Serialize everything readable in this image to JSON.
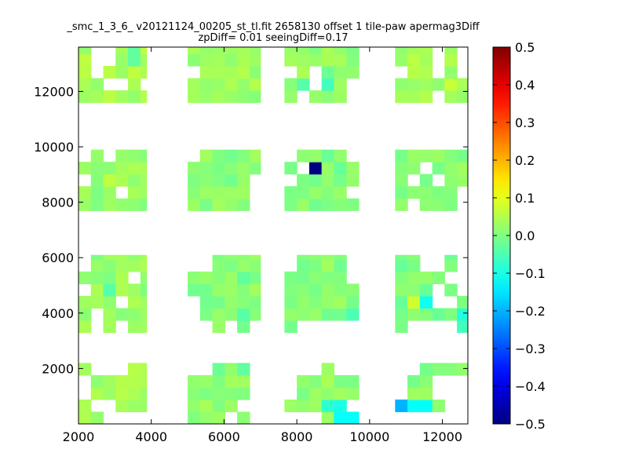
{
  "chart_data": {
    "type": "heatmap",
    "title": "_smc_1_3_6_ v20121124_00205_st_tl.fit 2658130 offset 1 tile-paw apermag3Diff",
    "subtitle": "zpDiff= 0.01 seeingDiff=0.17",
    "xlabel": "",
    "ylabel": "",
    "xlim": [
      2000,
      12700
    ],
    "ylim": [
      0,
      13600
    ],
    "xticks": [
      2000,
      4000,
      6000,
      8000,
      10000,
      12000
    ],
    "yticks": [
      2000,
      4000,
      6000,
      8000,
      10000,
      12000
    ],
    "cell_size": [
      340,
      440
    ],
    "colorbar": {
      "colormap": "jet",
      "vmin": -0.5,
      "vmax": 0.5,
      "ticks": [
        -0.5,
        -0.4,
        -0.3,
        -0.2,
        -0.1,
        0.0,
        0.1,
        0.2,
        0.3,
        0.4,
        0.5
      ],
      "tick_labels": [
        "−0.5",
        "−0.4",
        "−0.3",
        "−0.2",
        "−0.1",
        "0.0",
        "0.1",
        "0.2",
        "0.3",
        "0.4",
        "0.5"
      ]
    },
    "bands": [
      {
        "x0": 2000,
        "x1": 3870,
        "y0": 0,
        "y1": 2200,
        "v": 0.03
      },
      {
        "x0": 5000,
        "x1": 7000,
        "y0": 0,
        "y1": 2200,
        "v": 0.02
      },
      {
        "x0": 7660,
        "x1": 9700,
        "y0": 0,
        "y1": 2200,
        "v": 0.02
      },
      {
        "x0": 10700,
        "x1": 12700,
        "y0": 0,
        "y1": 2200,
        "v": 0.01
      },
      {
        "x0": 2000,
        "x1": 3870,
        "y0": 3300,
        "y1": 6100,
        "v": 0.02
      },
      {
        "x0": 5000,
        "x1": 7000,
        "y0": 3300,
        "y1": 6100,
        "v": 0.01
      },
      {
        "x0": 7660,
        "x1": 9700,
        "y0": 3300,
        "y1": 6100,
        "v": 0.01
      },
      {
        "x0": 10700,
        "x1": 12700,
        "y0": 3300,
        "y1": 6100,
        "v": 0.0
      },
      {
        "x0": 2000,
        "x1": 3870,
        "y0": 7700,
        "y1": 9900,
        "v": 0.02
      },
      {
        "x0": 5000,
        "x1": 7000,
        "y0": 7700,
        "y1": 9900,
        "v": 0.01
      },
      {
        "x0": 7660,
        "x1": 9700,
        "y0": 7700,
        "y1": 9900,
        "v": 0.0
      },
      {
        "x0": 10700,
        "x1": 12700,
        "y0": 7700,
        "y1": 9900,
        "v": 0.01
      },
      {
        "x0": 2000,
        "x1": 3870,
        "y0": 11600,
        "y1": 13600,
        "v": 0.04
      },
      {
        "x0": 5000,
        "x1": 7000,
        "y0": 11600,
        "y1": 13600,
        "v": 0.03
      },
      {
        "x0": 7660,
        "x1": 9700,
        "y0": 11600,
        "y1": 13600,
        "v": 0.02
      },
      {
        "x0": 10700,
        "x1": 12700,
        "y0": 11600,
        "y1": 13600,
        "v": 0.04
      }
    ],
    "outliers": [
      {
        "x": 8510,
        "y": 9230,
        "v": -0.5
      },
      {
        "x": 10940,
        "y": 530,
        "v": -0.2
      },
      {
        "x": 11280,
        "y": 530,
        "v": -0.12
      },
      {
        "x": 11620,
        "y": 530,
        "v": -0.12
      },
      {
        "x": 9150,
        "y": 530,
        "v": -0.1
      },
      {
        "x": 9150,
        "y": 150,
        "v": -0.12
      },
      {
        "x": 9490,
        "y": 150,
        "v": -0.12
      },
      {
        "x": 8830,
        "y": 530,
        "v": -0.08
      },
      {
        "x": 11620,
        "y": 4500,
        "v": -0.11
      },
      {
        "x": 12600,
        "y": 4020,
        "v": -0.09
      },
      {
        "x": 12600,
        "y": 3600,
        "v": -0.06
      },
      {
        "x": 11280,
        "y": 4500,
        "v": 0.08
      },
      {
        "x": 6430,
        "y": 4020,
        "v": -0.04
      },
      {
        "x": 9490,
        "y": 4020,
        "v": -0.05
      },
      {
        "x": 2680,
        "y": 4930,
        "v": -0.04
      },
      {
        "x": 6430,
        "y": 5370,
        "v": -0.03
      },
      {
        "x": 6430,
        "y": 1810,
        "v": -0.03
      },
      {
        "x": 5760,
        "y": 1810,
        "v": -0.02
      },
      {
        "x": 3360,
        "y": 13160,
        "v": -0.03
      },
      {
        "x": 8170,
        "y": 12280,
        "v": -0.04
      },
      {
        "x": 8830,
        "y": 12280,
        "v": -0.06
      },
      {
        "x": 8830,
        "y": 12720,
        "v": -0.02
      },
      {
        "x": 2680,
        "y": 8770,
        "v": 0.06
      },
      {
        "x": 12260,
        "y": 12280,
        "v": 0.07
      }
    ],
    "holes": [
      {
        "x": 2340,
        "y": 13160
      },
      {
        "x": 2680,
        "y": 13160
      },
      {
        "x": 2340,
        "y": 12720
      },
      {
        "x": 2680,
        "y": 12280
      },
      {
        "x": 3020,
        "y": 12280
      },
      {
        "x": 3700,
        "y": 12280
      },
      {
        "x": 5100,
        "y": 12720
      },
      {
        "x": 8510,
        "y": 12720
      },
      {
        "x": 8510,
        "y": 12280
      },
      {
        "x": 9490,
        "y": 12280
      },
      {
        "x": 9490,
        "y": 11840
      },
      {
        "x": 8170,
        "y": 11840
      },
      {
        "x": 7830,
        "y": 12720
      },
      {
        "x": 10940,
        "y": 12720
      },
      {
        "x": 11960,
        "y": 12720
      },
      {
        "x": 11960,
        "y": 13160
      },
      {
        "x": 11960,
        "y": 11840
      },
      {
        "x": 12600,
        "y": 12720
      },
      {
        "x": 12600,
        "y": 13160
      },
      {
        "x": 2000,
        "y": 9670
      },
      {
        "x": 2680,
        "y": 9670
      },
      {
        "x": 2000,
        "y": 8770
      },
      {
        "x": 3020,
        "y": 8330
      },
      {
        "x": 5100,
        "y": 9670
      },
      {
        "x": 6800,
        "y": 8770
      },
      {
        "x": 6800,
        "y": 8330
      },
      {
        "x": 6800,
        "y": 7890
      },
      {
        "x": 7830,
        "y": 8770
      },
      {
        "x": 8170,
        "y": 9230
      },
      {
        "x": 7830,
        "y": 9670
      },
      {
        "x": 9490,
        "y": 9670
      },
      {
        "x": 9490,
        "y": 8330
      },
      {
        "x": 11280,
        "y": 7890
      },
      {
        "x": 11620,
        "y": 9230
      },
      {
        "x": 11960,
        "y": 8770
      },
      {
        "x": 11280,
        "y": 8770
      },
      {
        "x": 12600,
        "y": 7890
      },
      {
        "x": 12600,
        "y": 8330
      },
      {
        "x": 2000,
        "y": 5810
      },
      {
        "x": 2000,
        "y": 4930
      },
      {
        "x": 2340,
        "y": 3600
      },
      {
        "x": 2340,
        "y": 4020
      },
      {
        "x": 3020,
        "y": 3600
      },
      {
        "x": 3020,
        "y": 4500
      },
      {
        "x": 3360,
        "y": 5370
      },
      {
        "x": 5100,
        "y": 4500
      },
      {
        "x": 5100,
        "y": 4020
      },
      {
        "x": 5100,
        "y": 3600
      },
      {
        "x": 5440,
        "y": 3600
      },
      {
        "x": 6100,
        "y": 3600
      },
      {
        "x": 6800,
        "y": 3600
      },
      {
        "x": 5100,
        "y": 5810
      },
      {
        "x": 5440,
        "y": 5810
      },
      {
        "x": 7830,
        "y": 5810
      },
      {
        "x": 8170,
        "y": 3600
      },
      {
        "x": 8510,
        "y": 3600
      },
      {
        "x": 8830,
        "y": 3600
      },
      {
        "x": 9150,
        "y": 3600
      },
      {
        "x": 9490,
        "y": 3600
      },
      {
        "x": 9490,
        "y": 5810
      },
      {
        "x": 9490,
        "y": 5370
      },
      {
        "x": 11620,
        "y": 5810
      },
      {
        "x": 11960,
        "y": 5810
      },
      {
        "x": 11960,
        "y": 4930
      },
      {
        "x": 11960,
        "y": 4500
      },
      {
        "x": 12260,
        "y": 4500
      },
      {
        "x": 12260,
        "y": 5370
      },
      {
        "x": 12600,
        "y": 5370
      },
      {
        "x": 12600,
        "y": 5810
      },
      {
        "x": 12600,
        "y": 4930
      },
      {
        "x": 11280,
        "y": 3600
      },
      {
        "x": 11620,
        "y": 3600
      },
      {
        "x": 11960,
        "y": 3600
      },
      {
        "x": 12260,
        "y": 3600
      },
      {
        "x": 2340,
        "y": 1810
      },
      {
        "x": 2680,
        "y": 1810
      },
      {
        "x": 3020,
        "y": 1810
      },
      {
        "x": 2000,
        "y": 1370
      },
      {
        "x": 2340,
        "y": 530
      },
      {
        "x": 2680,
        "y": 530
      },
      {
        "x": 2680,
        "y": 150
      },
      {
        "x": 3020,
        "y": 150
      },
      {
        "x": 3360,
        "y": 150
      },
      {
        "x": 3700,
        "y": 150
      },
      {
        "x": 5100,
        "y": 1810
      },
      {
        "x": 5440,
        "y": 1810
      },
      {
        "x": 6800,
        "y": 1810
      },
      {
        "x": 6800,
        "y": 1370
      },
      {
        "x": 6430,
        "y": 530
      },
      {
        "x": 6800,
        "y": 530
      },
      {
        "x": 6100,
        "y": 150
      },
      {
        "x": 6800,
        "y": 150
      },
      {
        "x": 7830,
        "y": 1810
      },
      {
        "x": 8170,
        "y": 1810
      },
      {
        "x": 8510,
        "y": 1810
      },
      {
        "x": 9150,
        "y": 1810
      },
      {
        "x": 9490,
        "y": 1810
      },
      {
        "x": 7830,
        "y": 1370
      },
      {
        "x": 7830,
        "y": 150
      },
      {
        "x": 8170,
        "y": 150
      },
      {
        "x": 8510,
        "y": 150
      },
      {
        "x": 10700,
        "y": 1370
      },
      {
        "x": 10940,
        "y": 1370
      },
      {
        "x": 11280,
        "y": 1810
      },
      {
        "x": 10700,
        "y": 1810
      },
      {
        "x": 10940,
        "y": 1810
      },
      {
        "x": 11960,
        "y": 1370
      },
      {
        "x": 12260,
        "y": 1370
      },
      {
        "x": 12600,
        "y": 1370
      },
      {
        "x": 11960,
        "y": 150
      },
      {
        "x": 12260,
        "y": 150
      },
      {
        "x": 12600,
        "y": 150
      },
      {
        "x": 12260,
        "y": 530
      },
      {
        "x": 12600,
        "y": 530
      },
      {
        "x": 10700,
        "y": 150
      },
      {
        "x": 10940,
        "y": 150
      },
      {
        "x": 11280,
        "y": 150
      },
      {
        "x": 11620,
        "y": 150
      },
      {
        "x": 10700,
        "y": 530
      },
      {
        "x": 9490,
        "y": 530
      }
    ]
  }
}
